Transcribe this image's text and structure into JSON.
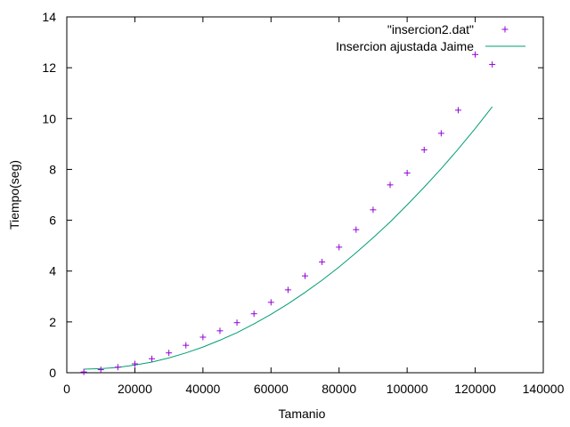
{
  "chart_data": {
    "type": "scatter",
    "title": "",
    "xlabel": "Tamanio",
    "ylabel": "Tiempo(seg)",
    "xlim": [
      0,
      140000
    ],
    "ylim": [
      0,
      14
    ],
    "xticks": [
      0,
      20000,
      40000,
      60000,
      80000,
      100000,
      120000,
      140000
    ],
    "yticks": [
      0,
      2,
      4,
      6,
      8,
      10,
      12,
      14
    ],
    "xtick_labels": [
      "0",
      "20000",
      "40000",
      "60000",
      "80000",
      "100000",
      "120000",
      "140000"
    ],
    "ytick_labels": [
      "0",
      "2",
      "4",
      "6",
      "8",
      "10",
      "12",
      "14"
    ],
    "grid": false,
    "legend_position": "top-right",
    "series": [
      {
        "name": "\"insercion2.dat\"",
        "type": "scatter",
        "marker": "plus",
        "color": "#9400d3",
        "x": [
          5000,
          10000,
          15000,
          20000,
          25000,
          30000,
          35000,
          40000,
          45000,
          50000,
          55000,
          60000,
          65000,
          70000,
          75000,
          80000,
          85000,
          90000,
          95000,
          100000,
          105000,
          110000,
          115000,
          120000,
          125000
        ],
        "y": [
          0.03,
          0.12,
          0.22,
          0.35,
          0.55,
          0.78,
          1.08,
          1.4,
          1.65,
          1.97,
          2.32,
          2.77,
          3.26,
          3.81,
          4.36,
          4.94,
          5.63,
          6.41,
          7.39,
          7.86,
          8.77,
          9.42,
          10.33,
          12.52,
          12.13
        ]
      },
      {
        "name": "Insercion ajustada Jaime",
        "type": "line",
        "color": "#009e73",
        "x": [
          5000,
          10000,
          15000,
          20000,
          25000,
          30000,
          35000,
          40000,
          45000,
          50000,
          55000,
          60000,
          65000,
          70000,
          75000,
          80000,
          85000,
          90000,
          95000,
          100000,
          105000,
          110000,
          115000,
          120000,
          125000
        ],
        "y": [
          0.14,
          0.16,
          0.21,
          0.3,
          0.42,
          0.58,
          0.78,
          1.01,
          1.28,
          1.58,
          1.92,
          2.3,
          2.71,
          3.16,
          3.64,
          4.16,
          4.72,
          5.31,
          5.93,
          6.6,
          7.3,
          8.03,
          8.8,
          9.61,
          10.46
        ]
      }
    ]
  }
}
